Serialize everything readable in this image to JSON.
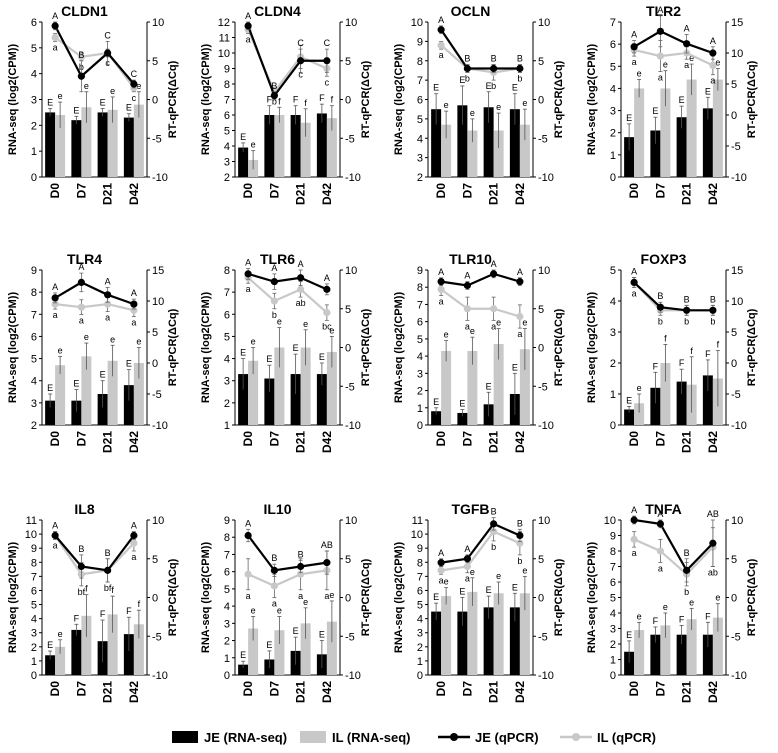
{
  "chart_data": {
    "type": "bar+line",
    "x_categories": [
      "D0",
      "D7",
      "D21",
      "D42"
    ],
    "left_axis_label": "RNA-seq (log2(CPM))",
    "right_axis_label": "RT-qPCR(ΔCq)",
    "right_ylim": [
      -10,
      10
    ],
    "legend": [
      {
        "name": "JE (RNA-seq)",
        "kind": "bar",
        "color": "#000000"
      },
      {
        "name": "IL (RNA-seq)",
        "kind": "bar",
        "color": "#c8c8c8"
      },
      {
        "name": "JE (qPCR)",
        "kind": "line",
        "color": "#000000"
      },
      {
        "name": "IL (qPCR)",
        "kind": "line",
        "color": "#c8c8c8"
      }
    ],
    "panels": [
      {
        "title": "CLDN1",
        "ylim": [
          0,
          6
        ],
        "yticks": [
          0,
          1,
          2,
          3,
          4,
          5,
          6
        ],
        "rticks": [
          -10,
          -5,
          0,
          5,
          10
        ],
        "je_rna": [
          2.5,
          2.2,
          2.5,
          2.3
        ],
        "je_rna_err": [
          0.15,
          0.15,
          0.15,
          0.15
        ],
        "il_rna": [
          2.4,
          2.7,
          2.6,
          2.8
        ],
        "il_rna_err": [
          0.5,
          0.6,
          0.5,
          0.5
        ],
        "je_rna_lab": [
          "E",
          "E",
          "E",
          "E"
        ],
        "il_rna_lab": [
          "e",
          "e",
          "e",
          "e"
        ],
        "je_q": [
          9.5,
          3.0,
          6.0,
          2.0
        ],
        "je_q_err": [
          0.5,
          2.0,
          1.5,
          0.5
        ],
        "il_q": [
          8.0,
          5.5,
          6.0,
          1.5
        ],
        "il_q_err": [
          0.5,
          0.5,
          0.5,
          0.5
        ],
        "je_q_lab": [
          "A",
          "B",
          "C",
          "C"
        ],
        "il_q_lab": [
          "a",
          "b",
          "c",
          "c"
        ]
      },
      {
        "title": "CLDN4",
        "ylim": [
          2,
          12
        ],
        "yticks": [
          2,
          3,
          4,
          5,
          6,
          7,
          8,
          9,
          10,
          11,
          12
        ],
        "rticks": [
          -10,
          -5,
          0,
          5,
          10
        ],
        "je_rna": [
          3.9,
          6.0,
          6.0,
          6.1
        ],
        "je_rna_err": [
          0.3,
          0.6,
          0.6,
          0.6
        ],
        "il_rna": [
          3.1,
          6.0,
          5.5,
          5.8
        ],
        "il_rna_err": [
          0.6,
          0.5,
          0.9,
          0.8
        ],
        "je_rna_lab": [
          "E",
          "F",
          "F",
          "F"
        ],
        "il_rna_lab": [
          "e",
          "f",
          "f",
          "f"
        ],
        "je_q": [
          9.5,
          0.5,
          5.0,
          5.0
        ],
        "je_q_err": [
          0.5,
          0.5,
          1.5,
          1.5
        ],
        "il_q": [
          9.0,
          1.0,
          5.5,
          4.0
        ],
        "il_q_err": [
          0.5,
          0.5,
          1.5,
          1.0
        ],
        "je_q_lab": [
          "A",
          "B",
          "C",
          "C"
        ],
        "il_q_lab": [
          "a",
          "b",
          "c",
          "c"
        ]
      },
      {
        "title": "OCLN",
        "ylim": [
          2,
          10
        ],
        "yticks": [
          2,
          3,
          4,
          5,
          6,
          7,
          8,
          9,
          10
        ],
        "rticks": [
          -10,
          -5,
          0,
          5,
          10
        ],
        "je_rna": [
          5.5,
          5.7,
          5.6,
          5.5
        ],
        "je_rna_err": [
          0.8,
          1.0,
          0.8,
          0.8
        ],
        "il_rna": [
          4.7,
          4.4,
          4.4,
          4.7
        ],
        "il_rna_err": [
          0.7,
          0.6,
          0.9,
          0.8
        ],
        "je_rna_lab": [
          "E",
          "E",
          "E",
          "E"
        ],
        "il_rna_lab": [
          "e",
          "e",
          "e",
          "e"
        ],
        "je_q": [
          9.0,
          4.0,
          4.0,
          4.0
        ],
        "je_q_err": [
          0.5,
          0.5,
          0.5,
          0.5
        ],
        "il_q": [
          7.0,
          4.0,
          3.5,
          4.0
        ],
        "il_q_err": [
          0.5,
          0.5,
          1.0,
          0.5
        ],
        "je_q_lab": [
          "A",
          "B",
          "B",
          "B"
        ],
        "il_q_lab": [
          "a",
          "b",
          "b",
          "b"
        ]
      },
      {
        "title": "TLR2",
        "ylim": [
          0,
          7
        ],
        "yticks": [
          0,
          1,
          2,
          3,
          4,
          5,
          6,
          7
        ],
        "rticks": [
          -10,
          -5,
          0,
          5,
          10,
          15
        ],
        "je_rna": [
          1.8,
          2.1,
          2.7,
          3.1
        ],
        "je_rna_err": [
          0.6,
          0.6,
          0.5,
          0.5
        ],
        "il_rna": [
          4.0,
          4.0,
          4.4,
          4.4
        ],
        "il_rna_err": [
          0.4,
          0.8,
          0.7,
          0.5
        ],
        "je_rna_lab": [
          "E",
          "E",
          "E",
          "E"
        ],
        "il_rna_lab": [
          "e",
          "e",
          "e",
          "e"
        ],
        "je_q": [
          11.0,
          13.5,
          11.5,
          10.0
        ],
        "je_q_err": [
          1.0,
          2.5,
          1.5,
          1.0
        ],
        "il_q": [
          10.5,
          9.5,
          10.0,
          8.0
        ],
        "il_q_err": [
          1.0,
          2.5,
          1.0,
          1.5
        ],
        "je_q_lab": [
          "A",
          "A",
          "A",
          "A"
        ],
        "il_q_lab": [
          "a",
          "a",
          "a",
          "a"
        ]
      },
      {
        "title": "TLR4",
        "ylim": [
          2,
          9
        ],
        "yticks": [
          2,
          3,
          4,
          5,
          6,
          7,
          8,
          9
        ],
        "rticks": [
          -10,
          -5,
          0,
          5,
          10,
          15
        ],
        "je_rna": [
          3.1,
          3.1,
          3.4,
          3.8
        ],
        "je_rna_err": [
          0.3,
          0.5,
          0.6,
          0.7
        ],
        "il_rna": [
          4.7,
          5.1,
          4.9,
          4.8
        ],
        "il_rna_err": [
          0.4,
          0.6,
          0.7,
          0.7
        ],
        "je_rna_lab": [
          "E",
          "E",
          "E",
          "E"
        ],
        "il_rna_lab": [
          "e",
          "e",
          "e",
          "e"
        ],
        "je_q": [
          10.5,
          13.0,
          11.0,
          9.5
        ],
        "je_q_err": [
          0.8,
          1.5,
          1.2,
          0.8
        ],
        "il_q": [
          9.5,
          9.0,
          9.5,
          8.5
        ],
        "il_q_err": [
          0.8,
          1.2,
          1.2,
          1.0
        ],
        "je_q_lab": [
          "A",
          "A",
          "A",
          "A"
        ],
        "il_q_lab": [
          "a",
          "a",
          "a",
          "a"
        ]
      },
      {
        "title": "TLR6",
        "ylim": [
          1,
          8
        ],
        "yticks": [
          1,
          2,
          3,
          4,
          5,
          6,
          7,
          8
        ],
        "rticks": [
          -10,
          -5,
          0,
          5,
          10
        ],
        "je_rna": [
          3.3,
          3.1,
          3.3,
          3.3
        ],
        "je_rna_err": [
          0.7,
          0.6,
          0.9,
          0.5
        ],
        "il_rna": [
          3.9,
          4.5,
          4.5,
          4.3
        ],
        "il_rna_err": [
          0.6,
          0.9,
          0.8,
          0.7
        ],
        "je_rna_lab": [
          "E",
          "E",
          "E",
          "E"
        ],
        "il_rna_lab": [
          "e",
          "e",
          "e",
          "e"
        ],
        "je_q": [
          9.5,
          8.5,
          9.0,
          7.5
        ],
        "je_q_err": [
          0.7,
          1.0,
          1.0,
          0.7
        ],
        "il_q": [
          9.0,
          6.0,
          7.5,
          4.5
        ],
        "il_q_err": [
          0.7,
          1.0,
          1.0,
          1.0
        ],
        "je_q_lab": [
          "A",
          "A",
          "A",
          "A"
        ],
        "il_q_lab": [
          "a",
          "b",
          "ab",
          "bc"
        ]
      },
      {
        "title": "TLR10",
        "ylim": [
          0,
          9
        ],
        "yticks": [
          0,
          1,
          2,
          3,
          4,
          5,
          6,
          7,
          8,
          9
        ],
        "rticks": [
          -10,
          -5,
          0,
          5,
          10
        ],
        "je_rna": [
          0.8,
          0.7,
          1.2,
          1.8
        ],
        "je_rna_err": [
          0.2,
          0.2,
          0.7,
          1.2
        ],
        "il_rna": [
          4.3,
          4.3,
          4.7,
          4.4
        ],
        "il_rna_err": [
          0.6,
          0.8,
          0.9,
          1.2
        ],
        "je_rna_lab": [
          "E",
          "E",
          "E",
          "E"
        ],
        "il_rna_lab": [
          "e",
          "e",
          "e",
          "e"
        ],
        "je_q": [
          8.5,
          8.0,
          9.5,
          8.5
        ],
        "je_q_err": [
          0.5,
          0.5,
          0.5,
          0.5
        ],
        "il_q": [
          7.5,
          5.0,
          5.0,
          4.0
        ],
        "il_q_err": [
          0.8,
          1.5,
          1.5,
          1.5
        ],
        "je_q_lab": [
          "A",
          "A",
          "A",
          "A"
        ],
        "il_q_lab": [
          "a",
          "a",
          "a",
          "a"
        ]
      },
      {
        "title": "FOXP3",
        "ylim": [
          0,
          5
        ],
        "yticks": [
          0,
          1,
          2,
          3,
          4,
          5
        ],
        "rticks": [
          -10,
          -5,
          0,
          5,
          10,
          15
        ],
        "je_rna": [
          0.5,
          1.2,
          1.4,
          1.6
        ],
        "je_rna_err": [
          0.1,
          0.5,
          0.4,
          0.5
        ],
        "il_rna": [
          0.7,
          2.0,
          1.3,
          1.5
        ],
        "il_rna_err": [
          0.3,
          0.6,
          0.9,
          0.9
        ],
        "je_rna_lab": [
          "E",
          "F",
          "F",
          "F"
        ],
        "il_rna_lab": [
          "e",
          "f",
          "f",
          "f"
        ],
        "je_q": [
          13.0,
          9.0,
          8.5,
          8.5
        ],
        "je_q_err": [
          0.8,
          0.8,
          0.8,
          0.8
        ],
        "il_q": [
          13.0,
          8.5,
          8.5,
          8.5
        ],
        "il_q_err": [
          0.8,
          0.8,
          0.8,
          0.8
        ],
        "je_q_lab": [
          "A",
          "B",
          "B",
          "B"
        ],
        "il_q_lab": [
          "a",
          "b",
          "b",
          "b"
        ]
      },
      {
        "title": "IL8",
        "ylim": [
          0,
          11
        ],
        "yticks": [
          0,
          1,
          2,
          3,
          4,
          5,
          6,
          7,
          8,
          9,
          10,
          11
        ],
        "rticks": [
          -10,
          -5,
          0,
          5,
          10
        ],
        "je_rna": [
          1.4,
          3.2,
          2.4,
          2.9
        ],
        "je_rna_err": [
          0.3,
          0.4,
          1.5,
          1.2
        ],
        "il_rna": [
          2.0,
          4.2,
          4.3,
          3.6
        ],
        "il_rna_err": [
          0.5,
          1.5,
          1.3,
          1.0
        ],
        "je_rna_lab": [
          "E",
          "F",
          "F",
          "F"
        ],
        "il_rna_lab": [
          "e",
          "f",
          "f",
          "f"
        ],
        "je_q": [
          8.0,
          4.0,
          3.5,
          8.0
        ],
        "je_q_err": [
          0.5,
          1.5,
          1.5,
          0.5
        ],
        "il_q": [
          8.0,
          3.0,
          3.5,
          7.0
        ],
        "il_q_err": [
          0.5,
          1.5,
          1.5,
          1.0
        ],
        "je_q_lab": [
          "A",
          "B",
          "B",
          "A"
        ],
        "il_q_lab": [
          "a",
          "bf",
          "bf",
          "a"
        ]
      },
      {
        "title": "IL10",
        "ylim": [
          0,
          9
        ],
        "yticks": [
          0,
          1,
          2,
          3,
          4,
          5,
          6,
          7,
          8,
          9
        ],
        "rticks": [
          -10,
          -5,
          0,
          5,
          10
        ],
        "je_rna": [
          0.6,
          0.9,
          1.4,
          1.2
        ],
        "je_rna_err": [
          0.2,
          0.5,
          0.8,
          0.8
        ],
        "il_rna": [
          2.7,
          2.6,
          3.0,
          3.1
        ],
        "il_rna_err": [
          0.7,
          0.8,
          0.9,
          1.2
        ],
        "je_rna_lab": [
          "E",
          "E",
          "E",
          "E"
        ],
        "il_rna_lab": [
          "e",
          "e",
          "e",
          "e"
        ],
        "je_q": [
          8.0,
          3.5,
          4.0,
          4.5
        ],
        "je_q_err": [
          0.8,
          0.8,
          0.8,
          1.5
        ],
        "il_q": [
          3.0,
          1.5,
          3.0,
          3.5
        ],
        "il_q_err": [
          2.0,
          1.5,
          2.0,
          2.5
        ],
        "je_q_lab": [
          "A",
          "B",
          "B",
          "AB"
        ],
        "il_q_lab": [
          "a",
          "a",
          "a",
          "a"
        ]
      },
      {
        "title": "TGFB",
        "ylim": [
          0,
          11
        ],
        "yticks": [
          0,
          1,
          2,
          3,
          4,
          5,
          6,
          7,
          8,
          9,
          10,
          11
        ],
        "rticks": [
          -10,
          -5,
          0,
          5,
          10
        ],
        "je_rna": [
          4.5,
          4.5,
          4.8,
          4.8
        ],
        "je_rna_err": [
          0.6,
          1.0,
          0.8,
          1.0
        ],
        "il_rna": [
          5.6,
          5.9,
          5.8,
          5.8
        ],
        "il_rna_err": [
          0.6,
          1.0,
          0.8,
          1.2
        ],
        "je_rna_lab": [
          "E",
          "E",
          "E",
          "E"
        ],
        "il_rna_lab": [
          "e",
          "e",
          "e",
          "e"
        ],
        "je_q": [
          4.5,
          5.0,
          9.5,
          8.0
        ],
        "je_q_err": [
          0.5,
          0.5,
          0.8,
          0.8
        ],
        "il_q": [
          3.5,
          4.0,
          8.5,
          7.0
        ],
        "il_q_err": [
          0.5,
          0.8,
          1.2,
          1.5
        ],
        "je_q_lab": [
          "A",
          "A",
          "B",
          "B"
        ],
        "il_q_lab": [
          "a",
          "a",
          "b",
          "b"
        ]
      },
      {
        "title": "TNFA",
        "ylim": [
          0,
          10
        ],
        "yticks": [
          0,
          1,
          2,
          3,
          4,
          5,
          6,
          7,
          8,
          9,
          10
        ],
        "rticks": [
          -10,
          -5,
          0,
          5,
          10
        ],
        "je_rna": [
          1.5,
          2.6,
          2.6,
          2.6
        ],
        "je_rna_err": [
          0.7,
          0.5,
          0.6,
          0.8
        ],
        "il_rna": [
          2.9,
          3.2,
          3.6,
          3.7
        ],
        "il_rna_err": [
          0.5,
          0.8,
          0.7,
          0.9
        ],
        "je_rna_lab": [
          "E",
          "F",
          "F",
          "F"
        ],
        "il_rna_lab": [
          "e",
          "e",
          "e",
          "e"
        ],
        "je_q": [
          10.0,
          9.5,
          3.5,
          7.0
        ],
        "je_q_err": [
          0.5,
          0.5,
          1.5,
          3.0
        ],
        "il_q": [
          7.5,
          6.0,
          3.0,
          6.5
        ],
        "il_q_err": [
          1.0,
          1.5,
          1.5,
          2.5
        ],
        "je_q_lab": [
          "A",
          "A",
          "B",
          "AB"
        ],
        "il_q_lab": [
          "a",
          "a",
          "b",
          "ab"
        ]
      }
    ]
  }
}
